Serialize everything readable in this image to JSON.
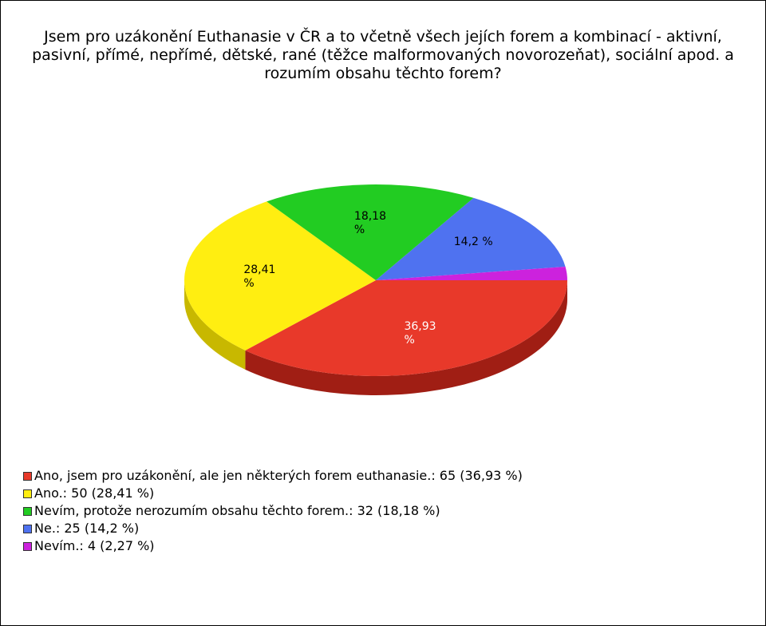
{
  "chart_data": {
    "type": "pie",
    "title": "Jsem pro uzákonění Euthanasie v ČR a to včetně všech jejích forem a kombinací - aktivní, pasivní, přímé, nepřímé, dětské, rané (těžce malformovaných novorozeňat), sociální apod. a rozumím obsahu těchto forem?",
    "labels": [
      "Ano, jsem pro uzákonění, ale jen některých forem euthanasie.: 65 (36,93 %)",
      "Ano.: 50 (28,41 %)",
      "Nevím, protože nerozumím obsahu těchto forem.: 32 (18,18 %)",
      "Ne.: 25 (14,2 %)",
      "Nevím.: 4 (2,27 %)"
    ],
    "values": [
      36.93,
      28.41,
      18.18,
      14.2,
      2.27
    ],
    "value_labels": [
      "36,93 %",
      "28,41 %",
      "18,18 %",
      "14,2 %",
      ""
    ],
    "colors": [
      "#e8392a",
      "#ffee11",
      "#22cc22",
      "#4f72f0",
      "#cc22dd"
    ],
    "side_colors": [
      "#a01e14",
      "#c8b800",
      "#128812",
      "#2e48b0",
      "#8a1496"
    ],
    "label_colors": [
      "#ffffff",
      "#000000",
      "#000000",
      "#000000",
      "#000000"
    ]
  }
}
